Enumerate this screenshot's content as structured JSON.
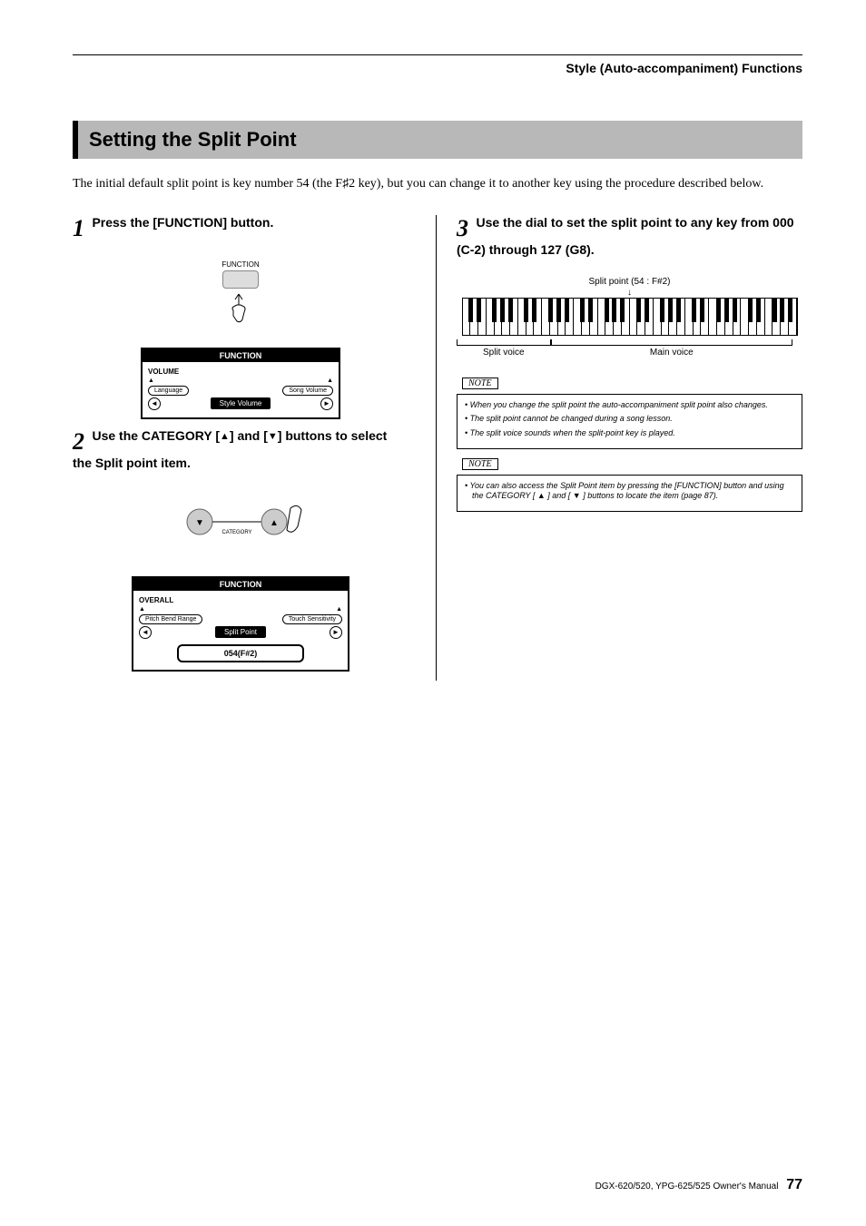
{
  "header": {
    "section_title": "Style (Auto-accompaniment) Functions"
  },
  "title": "Setting the Split Point",
  "intro": "The initial default split point is key number 54 (the F♯2 key), but you can change it to another key using the procedure described below.",
  "steps": {
    "s1": {
      "num": "1",
      "text": "Press the [FUNCTION] button."
    },
    "s2": {
      "num": "2",
      "text_a": "Use the CATEGORY [",
      "text_b": "] and [",
      "text_c": "] buttons to select the Split point item."
    },
    "s3": {
      "num": "3",
      "text": "Use the dial to set the split point to any key from 000 (C-2) through 127 (G8)."
    }
  },
  "illus1": {
    "button_label": "FUNCTION",
    "lcd_title": "FUNCTION",
    "category": "VOLUME",
    "left_item": "Language",
    "right_item": "Song Volume",
    "center": "Style Volume"
  },
  "illus2": {
    "dial_label": "CATEGORY",
    "lcd_title": "FUNCTION",
    "category": "OVERALL",
    "left_item": "Pitch Bend Range",
    "right_item": "Touch Sensitivity",
    "center": "Split Point",
    "value": "054(F#2)"
  },
  "keyboard": {
    "split_label": "Split point (54 : F#2)",
    "split_voice": "Split voice",
    "main_voice": "Main voice",
    "split_ratio": 0.28
  },
  "note1": {
    "label": "NOTE",
    "items": [
      "When you change the split point the auto-accompaniment split point also changes.",
      "The split point cannot be changed during a song lesson.",
      "The split voice sounds when the split-point key is played."
    ]
  },
  "note2": {
    "label": "NOTE",
    "items": [
      "You can also access the Split Point item by pressing the [FUNCTION] button and using the CATEGORY [ ▲ ] and [ ▼ ] buttons to locate the item (page 87)."
    ]
  },
  "footer": {
    "manual": "DGX-620/520, YPG-625/525  Owner's Manual",
    "page": "77"
  },
  "style": {
    "title_bg": "#b8b8b8",
    "title_border": "#000000"
  }
}
